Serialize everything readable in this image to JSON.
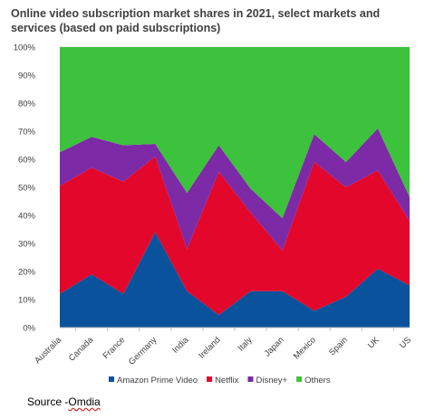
{
  "title_lines": [
    "Online video subscription market shares in 2021, select markets and",
    "services (based on paid subscriptions)"
  ],
  "source": {
    "prefix": "Source -",
    "name": "Omdia"
  },
  "chart_data": {
    "type": "area",
    "stacked": true,
    "title": "Online video subscription market shares in 2021, select markets and services (based on paid subscriptions)",
    "categories": [
      "Australia",
      "Canada",
      "France",
      "Germany",
      "India",
      "Ireland",
      "Italy",
      "Japan",
      "Mexico",
      "Spain",
      "UK",
      "US"
    ],
    "y_ticks": [
      "0%",
      "10%",
      "20%",
      "30%",
      "40%",
      "50%",
      "60%",
      "70%",
      "80%",
      "90%",
      "100%"
    ],
    "ylim": [
      0,
      100
    ],
    "y_unit": "%",
    "grid": true,
    "legend_position": "bottom",
    "series": [
      {
        "name": "Amazon Prime Video",
        "color": "#0a539c",
        "values": [
          12,
          19,
          12,
          34,
          13,
          4.5,
          13,
          13,
          6,
          11,
          21,
          15
        ]
      },
      {
        "name": "Netflix",
        "color": "#e3072b",
        "values": [
          38.5,
          38,
          40,
          27,
          15,
          51,
          28,
          14.5,
          53,
          39,
          35,
          23
        ]
      },
      {
        "name": "Disney+",
        "color": "#7d2aa6",
        "values": [
          12,
          11,
          13,
          4.5,
          20,
          9.5,
          8.5,
          11.5,
          10,
          9,
          15,
          8.5
        ]
      },
      {
        "name": "Others",
        "color": "#3cc23c",
        "values": [
          37.5,
          32,
          35,
          34.5,
          52,
          35,
          50.5,
          61,
          31,
          41,
          29,
          53.5
        ]
      }
    ]
  }
}
